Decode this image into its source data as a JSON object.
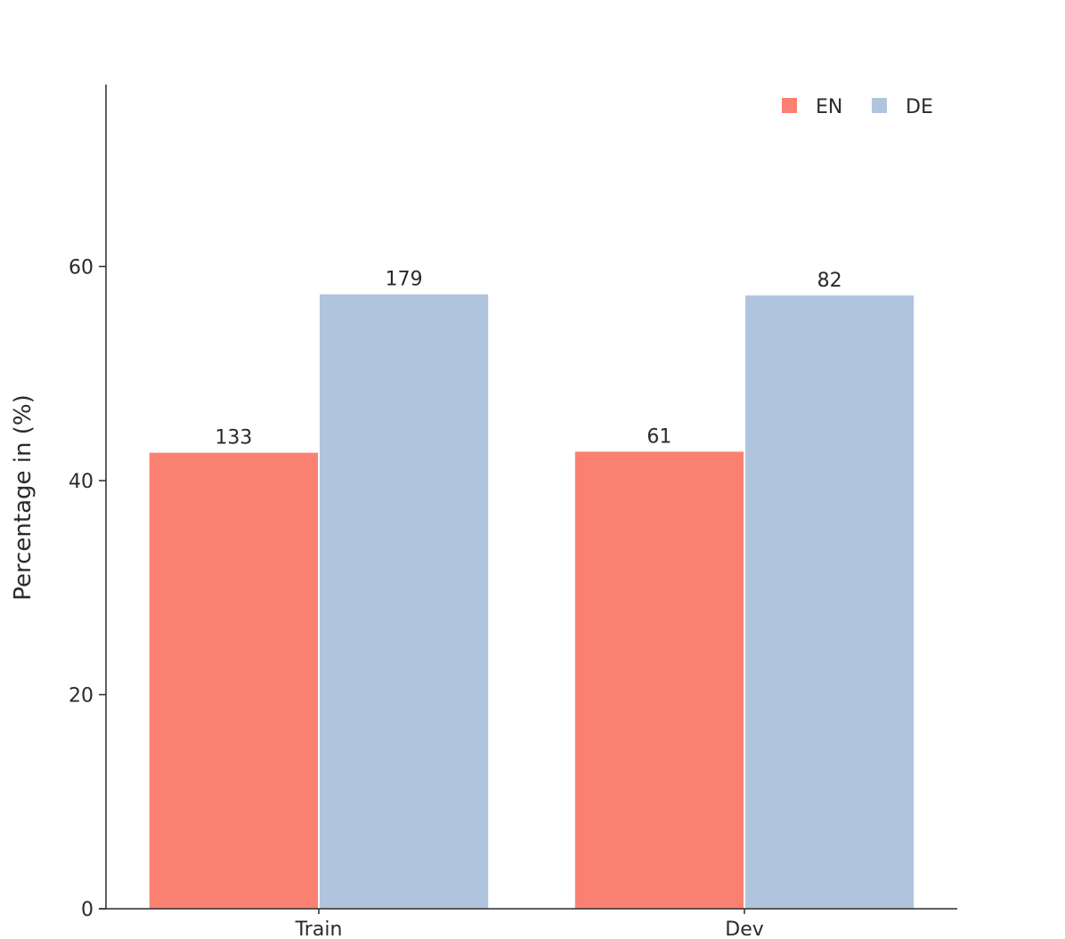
{
  "chart_data": {
    "type": "bar",
    "categories": [
      "Train",
      "Dev"
    ],
    "series": [
      {
        "name": "EN",
        "color": "#fa8072",
        "values": [
          42.6,
          42.7
        ],
        "labels": [
          "133",
          "61"
        ]
      },
      {
        "name": "DE",
        "color": "#b0c4de",
        "values": [
          57.4,
          57.3
        ],
        "labels": [
          "179",
          "82"
        ]
      }
    ],
    "title": "",
    "xlabel": "",
    "ylabel": "Percentage in (%)",
    "ylim": [
      0,
      77
    ],
    "yticks": [
      0,
      20,
      40,
      60
    ],
    "grid": false,
    "legend_position": "top-right"
  }
}
